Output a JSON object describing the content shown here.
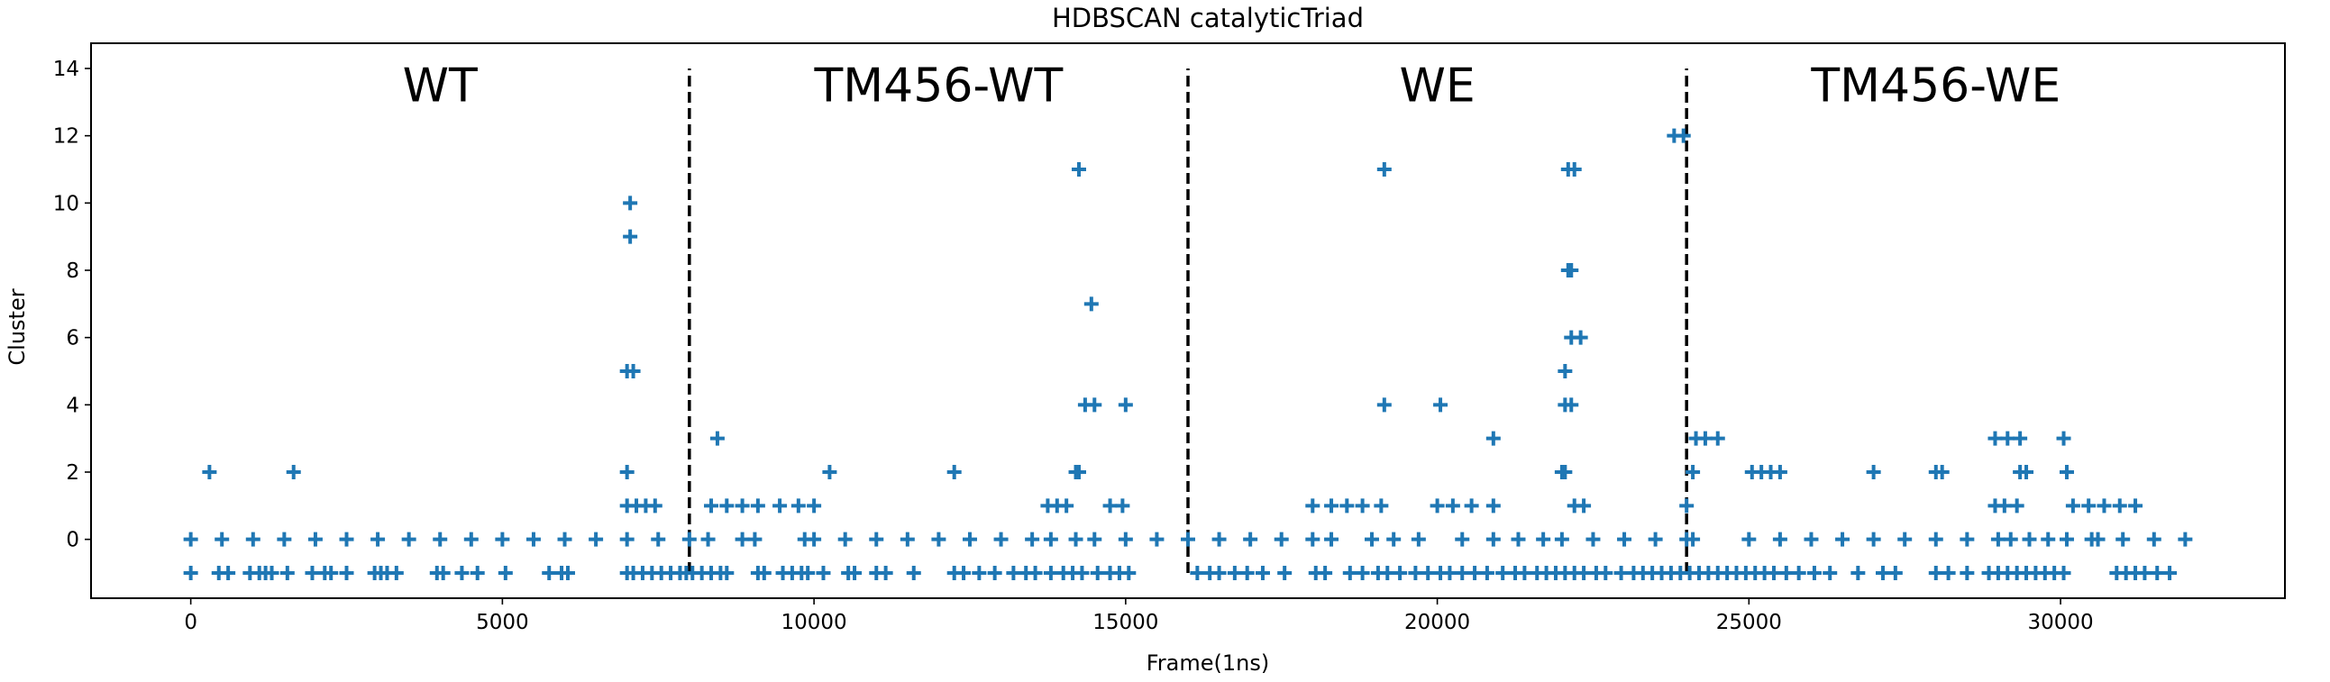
{
  "chart_data": {
    "type": "scatter",
    "title": "HDBSCAN catalyticTriad",
    "xlabel": "Frame(1ns)",
    "ylabel": "Cluster",
    "xlim": [
      -1600,
      33600
    ],
    "ylim": [
      -1.75,
      14.75
    ],
    "xticks": [
      0,
      5000,
      10000,
      15000,
      20000,
      25000,
      30000
    ],
    "xtick_labels": [
      "0",
      "5000",
      "10000",
      "15000",
      "20000",
      "25000",
      "30000"
    ],
    "yticks": [
      0,
      2,
      4,
      6,
      8,
      10,
      12,
      14
    ],
    "ytick_labels": [
      "0",
      "2",
      "4",
      "6",
      "8",
      "10",
      "12",
      "14"
    ],
    "grid": false,
    "marker": "+",
    "color": "#1f77b4",
    "dividers": {
      "x": [
        8000,
        16000,
        24000
      ],
      "y_range": [
        -1,
        14
      ],
      "style": "dashed",
      "color": "#000000"
    },
    "regions": [
      {
        "label": "WT",
        "x": 4000,
        "y": 13.5
      },
      {
        "label": "TM456-WT",
        "x": 12000,
        "y": 13.5
      },
      {
        "label": "WE",
        "x": 20000,
        "y": 13.5
      },
      {
        "label": "TM456-WE",
        "x": 28000,
        "y": 13.5
      }
    ],
    "series": [
      {
        "values": [
          [
            0,
            -1
          ],
          [
            450,
            -1
          ],
          [
            600,
            -1
          ],
          [
            950,
            -1
          ],
          [
            1100,
            -1
          ],
          [
            1200,
            -1
          ],
          [
            1300,
            -1
          ],
          [
            1550,
            -1
          ],
          [
            1950,
            -1
          ],
          [
            2150,
            -1
          ],
          [
            2250,
            -1
          ],
          [
            2500,
            -1
          ],
          [
            2950,
            -1
          ],
          [
            3050,
            -1
          ],
          [
            3150,
            -1
          ],
          [
            3300,
            -1
          ],
          [
            3950,
            -1
          ],
          [
            4050,
            -1
          ],
          [
            4350,
            -1
          ],
          [
            4600,
            -1
          ],
          [
            5050,
            -1
          ],
          [
            5750,
            -1
          ],
          [
            5950,
            -1
          ],
          [
            6050,
            -1
          ],
          [
            7000,
            -1
          ],
          [
            7100,
            -1
          ],
          [
            7250,
            -1
          ],
          [
            7400,
            -1
          ],
          [
            7550,
            -1
          ],
          [
            7700,
            -1
          ],
          [
            7850,
            -1
          ],
          [
            7950,
            -1
          ],
          [
            8050,
            -1
          ],
          [
            8200,
            -1
          ],
          [
            8350,
            -1
          ],
          [
            8500,
            -1
          ],
          [
            8600,
            -1
          ],
          [
            9100,
            -1
          ],
          [
            9200,
            -1
          ],
          [
            9500,
            -1
          ],
          [
            9650,
            -1
          ],
          [
            9800,
            -1
          ],
          [
            9900,
            -1
          ],
          [
            10150,
            -1
          ],
          [
            10550,
            -1
          ],
          [
            10650,
            -1
          ],
          [
            11000,
            -1
          ],
          [
            11150,
            -1
          ],
          [
            11600,
            -1
          ],
          [
            12250,
            -1
          ],
          [
            12400,
            -1
          ],
          [
            12650,
            -1
          ],
          [
            12900,
            -1
          ],
          [
            13200,
            -1
          ],
          [
            13400,
            -1
          ],
          [
            13550,
            -1
          ],
          [
            13800,
            -1
          ],
          [
            14000,
            -1
          ],
          [
            14150,
            -1
          ],
          [
            14300,
            -1
          ],
          [
            14550,
            -1
          ],
          [
            14750,
            -1
          ],
          [
            14900,
            -1
          ],
          [
            15050,
            -1
          ],
          [
            16150,
            -1
          ],
          [
            16350,
            -1
          ],
          [
            16500,
            -1
          ],
          [
            16750,
            -1
          ],
          [
            16950,
            -1
          ],
          [
            17200,
            -1
          ],
          [
            17550,
            -1
          ],
          [
            18050,
            -1
          ],
          [
            18200,
            -1
          ],
          [
            18600,
            -1
          ],
          [
            18800,
            -1
          ],
          [
            19050,
            -1
          ],
          [
            19200,
            -1
          ],
          [
            19400,
            -1
          ],
          [
            19650,
            -1
          ],
          [
            19850,
            -1
          ],
          [
            20050,
            -1
          ],
          [
            20200,
            -1
          ],
          [
            20400,
            -1
          ],
          [
            20600,
            -1
          ],
          [
            20800,
            -1
          ],
          [
            21050,
            -1
          ],
          [
            21250,
            -1
          ],
          [
            21400,
            -1
          ],
          [
            21600,
            -1
          ],
          [
            21750,
            -1
          ],
          [
            21900,
            -1
          ],
          [
            22050,
            -1
          ],
          [
            22200,
            -1
          ],
          [
            22350,
            -1
          ],
          [
            22550,
            -1
          ],
          [
            22700,
            -1
          ],
          [
            22950,
            -1
          ],
          [
            23150,
            -1
          ],
          [
            23300,
            -1
          ],
          [
            23450,
            -1
          ],
          [
            23600,
            -1
          ],
          [
            23750,
            -1
          ],
          [
            23900,
            -1
          ],
          [
            24050,
            -1
          ],
          [
            24200,
            -1
          ],
          [
            24350,
            -1
          ],
          [
            24500,
            -1
          ],
          [
            24650,
            -1
          ],
          [
            24800,
            -1
          ],
          [
            24950,
            -1
          ],
          [
            25100,
            -1
          ],
          [
            25250,
            -1
          ],
          [
            25400,
            -1
          ],
          [
            25600,
            -1
          ],
          [
            25800,
            -1
          ],
          [
            26050,
            -1
          ],
          [
            26300,
            -1
          ],
          [
            26750,
            -1
          ],
          [
            27150,
            -1
          ],
          [
            27350,
            -1
          ],
          [
            28000,
            -1
          ],
          [
            28200,
            -1
          ],
          [
            28500,
            -1
          ],
          [
            28850,
            -1
          ],
          [
            29000,
            -1
          ],
          [
            29150,
            -1
          ],
          [
            29300,
            -1
          ],
          [
            29450,
            -1
          ],
          [
            29600,
            -1
          ],
          [
            29750,
            -1
          ],
          [
            29900,
            -1
          ],
          [
            30050,
            -1
          ],
          [
            30900,
            -1
          ],
          [
            31050,
            -1
          ],
          [
            31200,
            -1
          ],
          [
            31350,
            -1
          ],
          [
            31550,
            -1
          ],
          [
            31750,
            -1
          ],
          [
            0,
            0
          ],
          [
            500,
            0
          ],
          [
            1000,
            0
          ],
          [
            1500,
            0
          ],
          [
            2000,
            0
          ],
          [
            2500,
            0
          ],
          [
            3000,
            0
          ],
          [
            3500,
            0
          ],
          [
            4000,
            0
          ],
          [
            4500,
            0
          ],
          [
            5000,
            0
          ],
          [
            5500,
            0
          ],
          [
            6000,
            0
          ],
          [
            6500,
            0
          ],
          [
            7000,
            0
          ],
          [
            7500,
            0
          ],
          [
            8000,
            0
          ],
          [
            8300,
            0
          ],
          [
            8850,
            0
          ],
          [
            9050,
            0
          ],
          [
            9850,
            0
          ],
          [
            10000,
            0
          ],
          [
            10500,
            0
          ],
          [
            11000,
            0
          ],
          [
            11500,
            0
          ],
          [
            12000,
            0
          ],
          [
            12500,
            0
          ],
          [
            13000,
            0
          ],
          [
            13500,
            0
          ],
          [
            13800,
            0
          ],
          [
            14200,
            0
          ],
          [
            14500,
            0
          ],
          [
            15000,
            0
          ],
          [
            15500,
            0
          ],
          [
            16000,
            0
          ],
          [
            16500,
            0
          ],
          [
            17000,
            0
          ],
          [
            17500,
            0
          ],
          [
            18000,
            0
          ],
          [
            18300,
            0
          ],
          [
            18950,
            0
          ],
          [
            19300,
            0
          ],
          [
            19700,
            0
          ],
          [
            20400,
            0
          ],
          [
            20900,
            0
          ],
          [
            21300,
            0
          ],
          [
            21700,
            0
          ],
          [
            22000,
            0
          ],
          [
            22500,
            0
          ],
          [
            23000,
            0
          ],
          [
            23500,
            0
          ],
          [
            24000,
            0
          ],
          [
            24100,
            0
          ],
          [
            25000,
            0
          ],
          [
            25500,
            0
          ],
          [
            26000,
            0
          ],
          [
            26500,
            0
          ],
          [
            27000,
            0
          ],
          [
            27500,
            0
          ],
          [
            28000,
            0
          ],
          [
            28500,
            0
          ],
          [
            29000,
            0
          ],
          [
            29200,
            0
          ],
          [
            29500,
            0
          ],
          [
            29800,
            0
          ],
          [
            30100,
            0
          ],
          [
            30500,
            0
          ],
          [
            30600,
            0
          ],
          [
            31000,
            0
          ],
          [
            31500,
            0
          ],
          [
            32000,
            0
          ],
          [
            7000,
            1
          ],
          [
            7150,
            1
          ],
          [
            7300,
            1
          ],
          [
            7450,
            1
          ],
          [
            8350,
            1
          ],
          [
            8600,
            1
          ],
          [
            8850,
            1
          ],
          [
            9100,
            1
          ],
          [
            9450,
            1
          ],
          [
            9750,
            1
          ],
          [
            10000,
            1
          ],
          [
            13750,
            1
          ],
          [
            13900,
            1
          ],
          [
            14050,
            1
          ],
          [
            14750,
            1
          ],
          [
            14950,
            1
          ],
          [
            18000,
            1
          ],
          [
            18300,
            1
          ],
          [
            18550,
            1
          ],
          [
            18800,
            1
          ],
          [
            19100,
            1
          ],
          [
            20000,
            1
          ],
          [
            20250,
            1
          ],
          [
            20550,
            1
          ],
          [
            20900,
            1
          ],
          [
            22200,
            1
          ],
          [
            22350,
            1
          ],
          [
            24000,
            1
          ],
          [
            28950,
            1
          ],
          [
            29100,
            1
          ],
          [
            29300,
            1
          ],
          [
            30200,
            1
          ],
          [
            30450,
            1
          ],
          [
            30700,
            1
          ],
          [
            30950,
            1
          ],
          [
            31200,
            1
          ],
          [
            300,
            2
          ],
          [
            1650,
            2
          ],
          [
            7000,
            2
          ],
          [
            10250,
            2
          ],
          [
            12250,
            2
          ],
          [
            14200,
            2
          ],
          [
            14250,
            2
          ],
          [
            22000,
            2
          ],
          [
            22050,
            2
          ],
          [
            24100,
            2
          ],
          [
            25050,
            2
          ],
          [
            25200,
            2
          ],
          [
            25350,
            2
          ],
          [
            25500,
            2
          ],
          [
            27000,
            2
          ],
          [
            28000,
            2
          ],
          [
            28100,
            2
          ],
          [
            29350,
            2
          ],
          [
            29450,
            2
          ],
          [
            30100,
            2
          ],
          [
            8450,
            3
          ],
          [
            20900,
            3
          ],
          [
            24150,
            3
          ],
          [
            24300,
            3
          ],
          [
            24500,
            3
          ],
          [
            28950,
            3
          ],
          [
            29150,
            3
          ],
          [
            29350,
            3
          ],
          [
            30050,
            3
          ],
          [
            14350,
            4
          ],
          [
            14500,
            4
          ],
          [
            15000,
            4
          ],
          [
            19150,
            4
          ],
          [
            20050,
            4
          ],
          [
            22050,
            4
          ],
          [
            22150,
            4
          ],
          [
            22050,
            5
          ],
          [
            7000,
            5
          ],
          [
            7100,
            5
          ],
          [
            22150,
            6
          ],
          [
            22300,
            6
          ],
          [
            14450,
            7
          ],
          [
            22100,
            8
          ],
          [
            22150,
            8
          ],
          [
            7050,
            9
          ],
          [
            7050,
            10
          ],
          [
            14250,
            11
          ],
          [
            19150,
            11
          ],
          [
            22100,
            11
          ],
          [
            22200,
            11
          ],
          [
            23800,
            12
          ],
          [
            23950,
            12
          ]
        ]
      }
    ]
  }
}
